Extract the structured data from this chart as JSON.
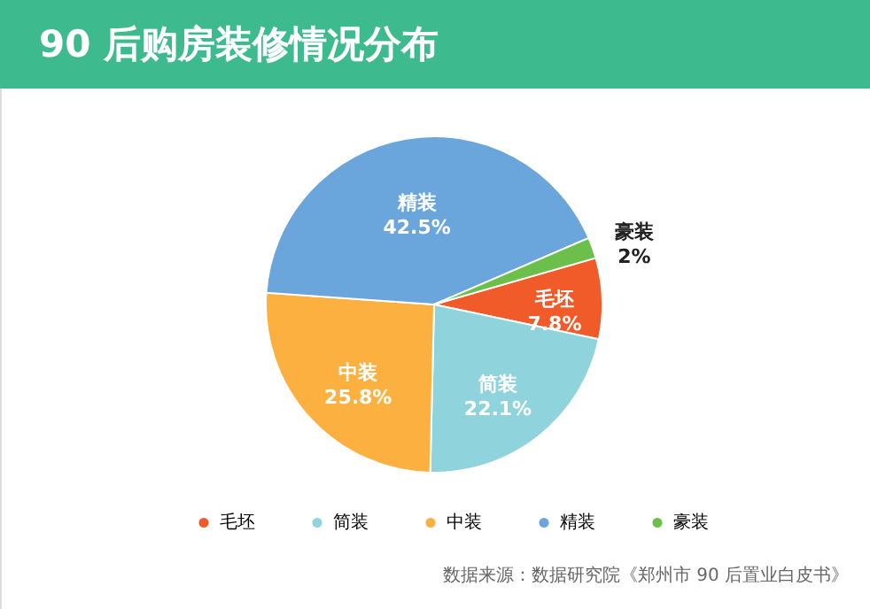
{
  "chart_data": {
    "type": "pie",
    "title": "90 后购房装修情况分布",
    "categories": [
      "毛坯",
      "简装",
      "中装",
      "精装",
      "豪装"
    ],
    "values": [
      7.8,
      22.1,
      25.8,
      42.5,
      2
    ],
    "value_labels": [
      "7.8%",
      "22.1%",
      "25.8%",
      "42.5%",
      "2%"
    ],
    "colors": [
      "#f15a29",
      "#8fd4dc",
      "#fbb040",
      "#6aa5dc",
      "#6dbf4b"
    ],
    "legend": "bottom",
    "annotations": [
      "数据来源：数据研究院《郑州市 90 后置业白皮书》"
    ]
  }
}
